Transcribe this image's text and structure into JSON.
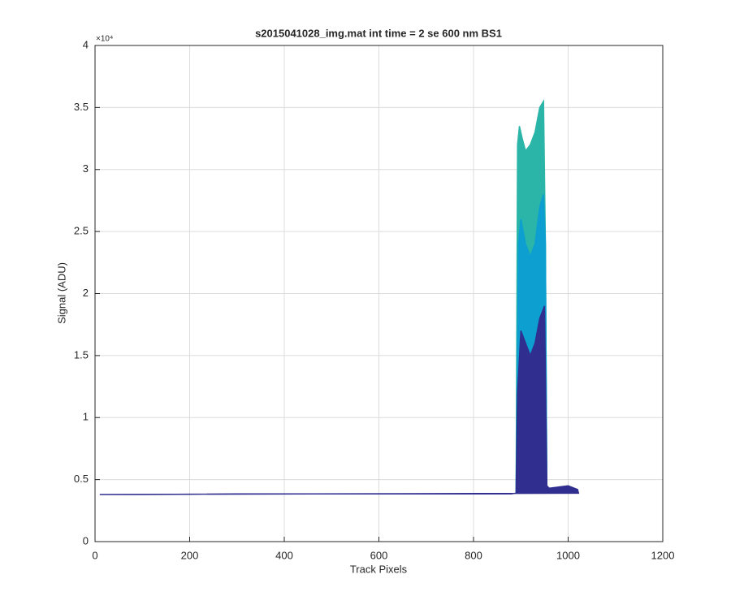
{
  "chart_data": {
    "type": "area",
    "title": "s2015041028_img.mat int time = 2 se  600 nm BS1",
    "xlabel": "Track Pixels",
    "ylabel": "Signal (ADU)",
    "y_multiplier": "×10⁴",
    "xlim": [
      0,
      1200
    ],
    "xticks": [
      0,
      200,
      400,
      600,
      800,
      1000,
      1200
    ],
    "ylim": [
      0,
      40000
    ],
    "yticks": [
      {
        "value": 0,
        "label": "0"
      },
      {
        "value": 5000,
        "label": "0.5"
      },
      {
        "value": 10000,
        "label": "1"
      },
      {
        "value": 15000,
        "label": "1.5"
      },
      {
        "value": 20000,
        "label": "2"
      },
      {
        "value": 25000,
        "label": "2.5"
      },
      {
        "value": 30000,
        "label": "3"
      },
      {
        "value": 35000,
        "label": "3.5"
      },
      {
        "value": 40000,
        "label": "4"
      }
    ],
    "grid": true,
    "series": [
      {
        "color": "#2bb5a8",
        "x": [
          890,
          893,
          897,
          903,
          910,
          920,
          930,
          940,
          948,
          952,
          955
        ],
        "values": [
          4000,
          32000,
          33500,
          32500,
          31500,
          32000,
          33000,
          35000,
          35500,
          24000,
          4000
        ]
      },
      {
        "color": "#0d9fd0",
        "x": [
          890,
          895,
          900,
          910,
          920,
          930,
          940,
          948,
          952,
          955
        ],
        "values": [
          4000,
          24000,
          26000,
          24000,
          23000,
          24000,
          27000,
          28000,
          24000,
          4000
        ]
      },
      {
        "color": "#302e8f",
        "x": [
          10,
          100,
          300,
          600,
          880,
          890,
          893,
          900,
          910,
          920,
          930,
          940,
          950,
          955,
          960,
          1000,
          1020,
          1022
        ],
        "values": [
          3800,
          3800,
          3850,
          3850,
          3850,
          3900,
          12000,
          17000,
          16000,
          15000,
          16000,
          18000,
          19000,
          4500,
          4300,
          4500,
          4200,
          3900
        ]
      }
    ]
  }
}
